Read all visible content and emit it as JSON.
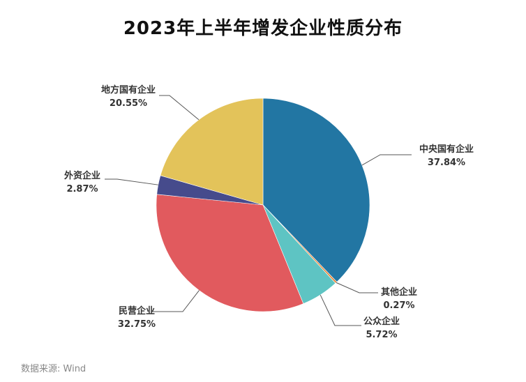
{
  "title": "2023年上半年增发企业性质分布",
  "source": "数据来源: Wind",
  "chart_data": {
    "type": "pie",
    "title": "2023年上半年增发企业性质分布",
    "start": "12 o'clock",
    "direction": "clockwise",
    "slices": [
      {
        "name": "中央国有企业",
        "value": 37.84,
        "label": "37.84%",
        "color": "#2276a3"
      },
      {
        "name": "其他企业",
        "value": 0.27,
        "label": "0.27%",
        "color": "#e8873a"
      },
      {
        "name": "公众企业",
        "value": 5.72,
        "label": "5.72%",
        "color": "#5ec4c3"
      },
      {
        "name": "民营企业",
        "value": 32.75,
        "label": "32.75%",
        "color": "#e15a5e"
      },
      {
        "name": "外资企业",
        "value": 2.87,
        "label": "2.87%",
        "color": "#464b8c"
      },
      {
        "name": "地方国有企业",
        "value": 20.55,
        "label": "20.55%",
        "color": "#e3c35a"
      }
    ]
  }
}
